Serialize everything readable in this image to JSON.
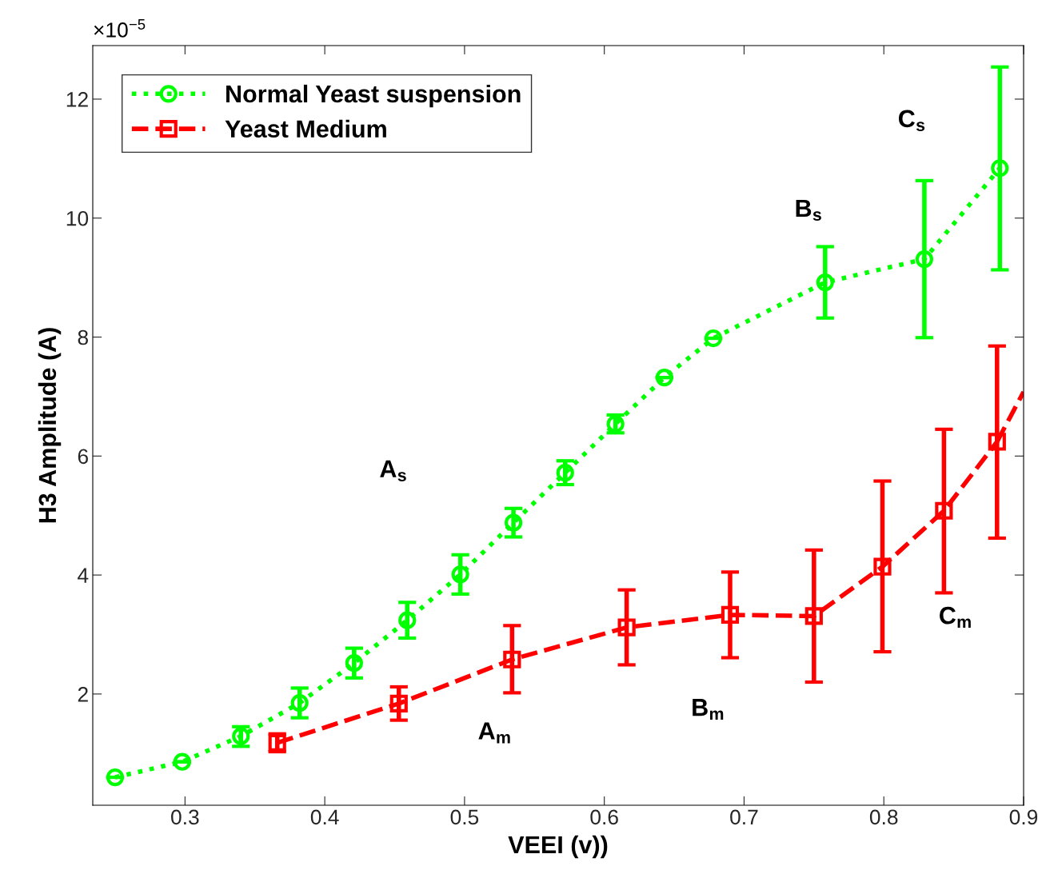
{
  "chart_data": {
    "type": "line",
    "xlabel": "VEEI (v))",
    "ylabel": "H3 Amplitude (A)",
    "xlim": [
      0.234,
      0.9
    ],
    "xticks": [
      0.3,
      0.4,
      0.5,
      0.6,
      0.7,
      0.8,
      0.9
    ],
    "ylim": [
      0.13,
      12.9
    ],
    "yticks": [
      2,
      4,
      6,
      8,
      10,
      12
    ],
    "grid": false,
    "legend": "top left",
    "series": [
      {
        "name": "Normal Yeast suspension",
        "color": "#00ff00",
        "marker": "circle",
        "line_style": "dotted",
        "x": [
          0.25,
          0.298,
          0.34,
          0.382,
          0.421,
          0.459,
          0.497,
          0.535,
          0.572,
          0.608,
          0.643,
          0.678,
          0.758,
          0.829,
          0.883
        ],
        "values": [
          0.6,
          0.86,
          1.29,
          1.85,
          2.52,
          3.24,
          4.01,
          4.88,
          5.72,
          6.54,
          7.32,
          7.98,
          8.92,
          9.31,
          10.84
        ],
        "errors": [
          null,
          null,
          [
            1.12,
            1.45
          ],
          [
            1.6,
            2.1
          ],
          [
            2.27,
            2.77
          ],
          [
            2.94,
            3.54
          ],
          [
            3.68,
            4.34
          ],
          [
            4.64,
            5.12
          ],
          [
            5.52,
            5.92
          ],
          [
            6.39,
            6.69
          ],
          null,
          null,
          [
            8.32,
            9.52
          ],
          [
            7.99,
            10.63
          ],
          [
            9.13,
            12.54
          ]
        ]
      },
      {
        "name": "Yeast Medium",
        "color": "#ff0000",
        "marker": "square",
        "line_style": "dashed",
        "x": [
          0.366,
          0.453,
          0.534,
          0.616,
          0.69,
          0.75,
          0.799,
          0.843,
          0.881
        ],
        "values": [
          1.18,
          1.84,
          2.58,
          3.12,
          3.33,
          3.31,
          4.14,
          5.08,
          6.24
        ],
        "errors": [
          [
            1.03,
            1.33
          ],
          [
            1.56,
            2.12
          ],
          [
            2.02,
            3.15
          ],
          [
            2.49,
            3.75
          ],
          [
            2.61,
            4.05
          ],
          [
            2.2,
            4.42
          ],
          [
            2.71,
            5.58
          ],
          [
            3.7,
            6.45
          ],
          [
            4.62,
            7.85
          ]
        ]
      },
      {
        "color": "#ff0000",
        "marker": "none",
        "line_style": "dashed",
        "x": [
          0.881,
          0.9
        ],
        "values": [
          6.24,
          7.08
        ]
      }
    ],
    "annotations": [
      "×10$^{−5}$",
      "A$_{s}$",
      "A$_{m}$",
      "B$_{s}$",
      "B$_{m}$",
      "C$_{s}$",
      "C$_{m}$"
    ]
  }
}
